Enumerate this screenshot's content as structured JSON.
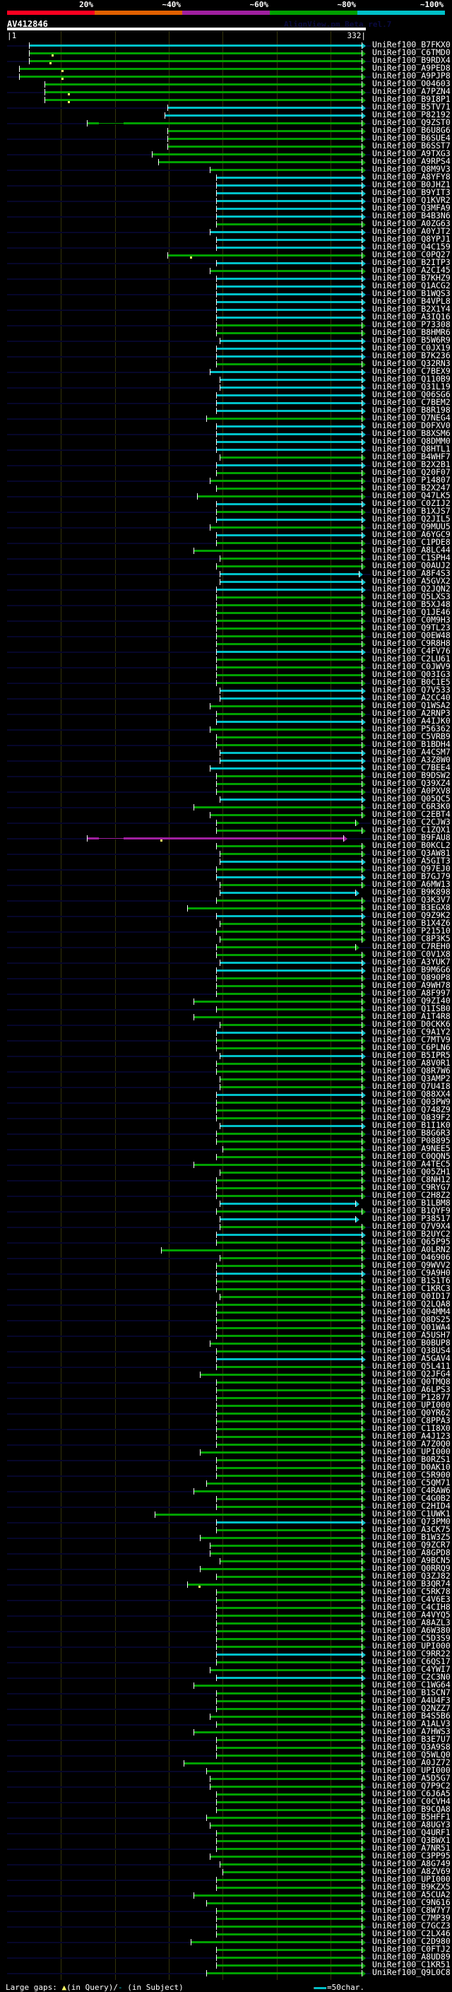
{
  "colors": {
    "red": "#ff0020",
    "orange": "#e06000",
    "purple": "#a020a0",
    "green": "#00a000",
    "cyan": "#00c0c8",
    "magenta": "#a020a0",
    "row_stripe": "#06062a",
    "grid": "#33330a"
  },
  "identity_legend": [
    {
      "label": "20%",
      "color": "#ff0020"
    },
    {
      "label": "~40%",
      "color": "#e06000"
    },
    {
      "label": "~60%",
      "color": "#a020a0"
    },
    {
      "label": "~80%",
      "color": "#00a000"
    },
    {
      "label": "~100%",
      "color": "#00c0c8"
    }
  ],
  "query": {
    "name": "AV412846",
    "start_label": "|1",
    "end_label": "332|",
    "length": 332
  },
  "credit": "AlignView.pm Beta rel.7",
  "footer": {
    "prefix": "Large gaps: ",
    "query_gap_icon": "▲",
    "query_text": "(in Query)/",
    "subject_gap_icon": "-",
    "subject_text": " (in Subject)",
    "scale_text": "=50char."
  },
  "bin_colors": {
    "c": "#00c0c8",
    "g": "#00a000",
    "m": "#a020a0"
  },
  "hits": [
    [
      "UniRef100_B7FKX0",
      21,
      330,
      "c"
    ],
    [
      "UniRef100_C6TMD0",
      21,
      330,
      "g",
      {
        "q": [
          43
        ]
      }
    ],
    [
      "UniRef100_B9RDX4",
      21,
      330,
      "g",
      {
        "q": [
          41
        ]
      }
    ],
    [
      "UniRef100_A9PED8",
      12,
      330,
      "g",
      {
        "q": [
          52
        ]
      }
    ],
    [
      "UniRef100_A9PJP8",
      12,
      330,
      "g",
      {
        "q": [
          52
        ]
      }
    ],
    [
      "UniRef100_O04603",
      36,
      330,
      "g"
    ],
    [
      "UniRef100_A7PZN4",
      36,
      330,
      "g",
      {
        "q": [
          58
        ]
      }
    ],
    [
      "UniRef100_B9I8P1",
      36,
      330,
      "g",
      {
        "q": [
          58
        ]
      }
    ],
    [
      "UniRef100_B5TV71",
      150,
      330,
      "c"
    ],
    [
      "UniRef100_P82192",
      147,
      330,
      "c"
    ],
    [
      "UniRef100_Q9ZST0",
      75,
      330,
      "g",
      {
        "t": [
          [
            86,
            109
          ]
        ]
      }
    ],
    [
      "UniRef100_B6U8G6",
      150,
      330,
      "g"
    ],
    [
      "UniRef100_B6SUE4",
      150,
      330,
      "g"
    ],
    [
      "UniRef100_B6SST7",
      150,
      330,
      "g"
    ],
    [
      "UniRef100_A9TXG3",
      135,
      330,
      "g"
    ],
    [
      "UniRef100_A9RPS4",
      141,
      330,
      "g"
    ],
    [
      "UniRef100_Q8M9V3",
      189,
      330,
      "g"
    ],
    [
      "UniRef100_A8YFY8",
      195,
      330,
      "c"
    ],
    [
      "UniRef100_B0JHZ1",
      195,
      330,
      "c"
    ],
    [
      "UniRef100_B9YIT3",
      195,
      330,
      "c"
    ],
    [
      "UniRef100_Q1KVR2",
      195,
      330,
      "c"
    ],
    [
      "UniRef100_Q3MFA9",
      195,
      330,
      "c"
    ],
    [
      "UniRef100_B4B3N6",
      195,
      330,
      "c"
    ],
    [
      "UniRef100_A0ZG63",
      195,
      330,
      "g"
    ],
    [
      "UniRef100_A0YJT2",
      189,
      330,
      "c"
    ],
    [
      "UniRef100_Q8YPJ1",
      195,
      330,
      "c"
    ],
    [
      "UniRef100_Q4C159",
      195,
      330,
      "c"
    ],
    [
      "UniRef100_C0PQ27",
      150,
      330,
      "g",
      {
        "q": [
          171
        ]
      }
    ],
    [
      "UniRef100_B2ITP3",
      195,
      330,
      "c"
    ],
    [
      "UniRef100_A2CI45",
      189,
      330,
      "g"
    ],
    [
      "UniRef100_B7KHZ9",
      195,
      330,
      "c"
    ],
    [
      "UniRef100_Q1ACG2",
      195,
      330,
      "c"
    ],
    [
      "UniRef100_B1WQS3",
      195,
      330,
      "c"
    ],
    [
      "UniRef100_B4VPL8",
      195,
      330,
      "c"
    ],
    [
      "UniRef100_B2X1Y4",
      195,
      330,
      "c"
    ],
    [
      "UniRef100_A3IQ16",
      195,
      330,
      "c"
    ],
    [
      "UniRef100_P73308",
      195,
      330,
      "g"
    ],
    [
      "UniRef100_B8HMR6",
      195,
      330,
      "g"
    ],
    [
      "UniRef100_B5W6R9",
      198,
      330,
      "c"
    ],
    [
      "UniRef100_C0JX19",
      195,
      330,
      "c"
    ],
    [
      "UniRef100_B7K236",
      195,
      330,
      "c"
    ],
    [
      "UniRef100_Q32RN3",
      195,
      330,
      "g"
    ],
    [
      "UniRef100_C7BEX9",
      189,
      330,
      "c"
    ],
    [
      "UniRef100_Q110B9",
      198,
      330,
      "c"
    ],
    [
      "UniRef100_Q31L19",
      198,
      330,
      "c"
    ],
    [
      "UniRef100_Q06SG6",
      195,
      330,
      "c"
    ],
    [
      "UniRef100_C7BEM2",
      195,
      330,
      "c"
    ],
    [
      "UniRef100_B8R198",
      195,
      330,
      "c"
    ],
    [
      "UniRef100_Q7NEG4",
      186,
      330,
      "g"
    ],
    [
      "UniRef100_D0FXV0",
      195,
      330,
      "c"
    ],
    [
      "UniRef100_B8XSM6",
      195,
      330,
      "c"
    ],
    [
      "UniRef100_Q8DMM0",
      195,
      330,
      "c"
    ],
    [
      "UniRef100_Q8HTL1",
      195,
      330,
      "c"
    ],
    [
      "UniRef100_B4WHF7",
      198,
      330,
      "g"
    ],
    [
      "UniRef100_B2X2B1",
      195,
      330,
      "c"
    ],
    [
      "UniRef100_Q20F07",
      195,
      330,
      "g"
    ],
    [
      "UniRef100_P14807",
      189,
      330,
      "g"
    ],
    [
      "UniRef100_B2X247",
      195,
      330,
      "g"
    ],
    [
      "UniRef100_Q47LK5",
      177,
      330,
      "g"
    ],
    [
      "UniRef100_C0ZIJ2",
      195,
      330,
      "c"
    ],
    [
      "UniRef100_B1XJS7",
      195,
      330,
      "g"
    ],
    [
      "UniRef100_Q2JIL5",
      195,
      330,
      "c"
    ],
    [
      "UniRef100_Q9MUU5",
      189,
      330,
      "g"
    ],
    [
      "UniRef100_A6YGC9",
      195,
      330,
      "c"
    ],
    [
      "UniRef100_C1PDE8",
      195,
      330,
      "g"
    ],
    [
      "UniRef100_A8LC44",
      174,
      330,
      "g"
    ],
    [
      "UniRef100_C1SPH4",
      198,
      330,
      "g"
    ],
    [
      "UniRef100_Q0AUJ2",
      195,
      330,
      "g"
    ],
    [
      "UniRef100_A8F4S3",
      198,
      327,
      "c"
    ],
    [
      "UniRef100_A5GVX2",
      198,
      330,
      "c"
    ],
    [
      "UniRef100_Q2JQN2",
      195,
      330,
      "c"
    ],
    [
      "UniRef100_Q5LXS3",
      195,
      330,
      "g"
    ],
    [
      "UniRef100_B5XJ48",
      195,
      330,
      "g"
    ],
    [
      "UniRef100_Q1JE46",
      195,
      330,
      "g"
    ],
    [
      "UniRef100_C0M9H3",
      195,
      330,
      "g"
    ],
    [
      "UniRef100_Q9TL23",
      195,
      330,
      "g"
    ],
    [
      "UniRef100_Q0EW48",
      195,
      330,
      "g"
    ],
    [
      "UniRef100_C9R8H8",
      195,
      330,
      "g"
    ],
    [
      "UniRef100_C4FV76",
      195,
      330,
      "c"
    ],
    [
      "UniRef100_C2LU61",
      195,
      330,
      "g"
    ],
    [
      "UniRef100_C0JWV9",
      195,
      330,
      "g"
    ],
    [
      "UniRef100_Q03IG3",
      195,
      330,
      "g"
    ],
    [
      "UniRef100_B0C1E5",
      195,
      330,
      "g"
    ],
    [
      "UniRef100_Q7V533",
      198,
      330,
      "c"
    ],
    [
      "UniRef100_A2CC40",
      198,
      330,
      "c"
    ],
    [
      "UniRef100_Q1WSA2",
      189,
      330,
      "g"
    ],
    [
      "UniRef100_A2RNP3",
      195,
      330,
      "g"
    ],
    [
      "UniRef100_A4IJK0",
      195,
      330,
      "c"
    ],
    [
      "UniRef100_P56362",
      189,
      330,
      "g"
    ],
    [
      "UniRef100_C5VRB9",
      195,
      330,
      "g"
    ],
    [
      "UniRef100_B1BDH4",
      195,
      330,
      "g"
    ],
    [
      "UniRef100_A4CSM7",
      198,
      330,
      "c"
    ],
    [
      "UniRef100_A3Z8W0",
      198,
      330,
      "c"
    ],
    [
      "UniRef100_C7BEE4",
      189,
      330,
      "c"
    ],
    [
      "UniRef100_B9DSW2",
      195,
      330,
      "g"
    ],
    [
      "UniRef100_Q39XZ4",
      195,
      330,
      "g"
    ],
    [
      "UniRef100_A0PXV8",
      195,
      330,
      "g"
    ],
    [
      "UniRef100_Q05QC5",
      198,
      330,
      "c"
    ],
    [
      "UniRef100_C6R3K0",
      174,
      330,
      "g"
    ],
    [
      "UniRef100_C2EBT4",
      189,
      330,
      "g"
    ],
    [
      "UniRef100_C2CJW3",
      195,
      324,
      "g"
    ],
    [
      "UniRef100_C1ZQX1",
      195,
      330,
      "g"
    ],
    [
      "UniRef100_B9FAU8",
      75,
      313,
      "m",
      {
        "t": [
          [
            86,
            109
          ]
        ],
        "q": [
          144
        ]
      }
    ],
    [
      "UniRef100_B0KCL2",
      195,
      330,
      "g"
    ],
    [
      "UniRef100_Q3AW81",
      198,
      330,
      "g"
    ],
    [
      "UniRef100_A5GIT3",
      198,
      330,
      "c"
    ],
    [
      "UniRef100_Q97EJ0",
      195,
      330,
      "g"
    ],
    [
      "UniRef100_B7GJ79",
      195,
      330,
      "c"
    ],
    [
      "UniRef100_A6MW13",
      198,
      330,
      "g"
    ],
    [
      "UniRef100_B9K898",
      198,
      324,
      "c"
    ],
    [
      "UniRef100_Q3K3V7",
      195,
      330,
      "g"
    ],
    [
      "UniRef100_B3EGX8",
      168,
      330,
      "g"
    ],
    [
      "UniRef100_Q9Z9K2",
      195,
      330,
      "c"
    ],
    [
      "UniRef100_B1X4Z6",
      198,
      330,
      "g"
    ],
    [
      "UniRef100_P21510",
      195,
      330,
      "g"
    ],
    [
      "UniRef100_C8P3K5",
      198,
      330,
      "g"
    ],
    [
      "UniRef100_C7REH0",
      195,
      324,
      "g"
    ],
    [
      "UniRef100_C0V1X8",
      195,
      330,
      "g"
    ],
    [
      "UniRef100_A3YUK7",
      198,
      330,
      "c"
    ],
    [
      "UniRef100_B9M6G6",
      195,
      330,
      "c"
    ],
    [
      "UniRef100_Q890P8",
      195,
      330,
      "g"
    ],
    [
      "UniRef100_A9WH78",
      195,
      330,
      "g"
    ],
    [
      "UniRef100_A8F997",
      195,
      330,
      "g"
    ],
    [
      "UniRef100_Q9ZI40",
      174,
      330,
      "g"
    ],
    [
      "UniRef100_Q1ISB0",
      195,
      330,
      "g"
    ],
    [
      "UniRef100_A1T4R8",
      174,
      330,
      "g"
    ],
    [
      "UniRef100_D0CKK6",
      198,
      330,
      "g"
    ],
    [
      "UniRef100_C9A1Y2",
      195,
      330,
      "c"
    ],
    [
      "UniRef100_C7MTV9",
      195,
      330,
      "g"
    ],
    [
      "UniRef100_C6PLN6",
      195,
      330,
      "g"
    ],
    [
      "UniRef100_B5IPR5",
      198,
      330,
      "c"
    ],
    [
      "UniRef100_A8V0R1",
      195,
      330,
      "g"
    ],
    [
      "UniRef100_Q8R7W6",
      195,
      330,
      "g"
    ],
    [
      "UniRef100_Q3AMP2",
      198,
      330,
      "g"
    ],
    [
      "UniRef100_Q7U4I8",
      198,
      330,
      "g"
    ],
    [
      "UniRef100_Q88XX4",
      195,
      330,
      "c"
    ],
    [
      "UniRef100_Q03PW9",
      195,
      330,
      "g"
    ],
    [
      "UniRef100_Q748Z9",
      195,
      330,
      "g"
    ],
    [
      "UniRef100_Q839F2",
      195,
      330,
      "g"
    ],
    [
      "UniRef100_B1I1K0",
      198,
      330,
      "c"
    ],
    [
      "UniRef100_B8G6R3",
      195,
      330,
      "g"
    ],
    [
      "UniRef100_P08895",
      195,
      330,
      "g"
    ],
    [
      "UniRef100_A9NEE5",
      201,
      330,
      "g"
    ],
    [
      "UniRef100_C0QQN5",
      195,
      330,
      "g"
    ],
    [
      "UniRef100_A4TEC5",
      174,
      330,
      "g"
    ],
    [
      "UniRef100_Q05ZH1",
      198,
      330,
      "g"
    ],
    [
      "UniRef100_C8NH12",
      195,
      330,
      "g"
    ],
    [
      "UniRef100_C9RYG7",
      195,
      330,
      "g"
    ],
    [
      "UniRef100_C2H8Z2",
      195,
      330,
      "g"
    ],
    [
      "UniRef100_B1LBM8",
      198,
      324,
      "c"
    ],
    [
      "UniRef100_B1QYF9",
      195,
      330,
      "g"
    ],
    [
      "UniRef100_P38517",
      198,
      324,
      "c"
    ],
    [
      "UniRef100_Q7V9X4",
      198,
      330,
      "g"
    ],
    [
      "UniRef100_B2UYC2",
      195,
      330,
      "c"
    ],
    [
      "UniRef100_Q65P95",
      195,
      330,
      "g"
    ],
    [
      "UniRef100_A0LRN2",
      144,
      330,
      "g"
    ],
    [
      "UniRef100_O46906",
      198,
      330,
      "g"
    ],
    [
      "UniRef100_Q9WVV2",
      195,
      330,
      "g"
    ],
    [
      "UniRef100_C9A9H0",
      195,
      330,
      "c"
    ],
    [
      "UniRef100_B1S1T6",
      195,
      330,
      "g"
    ],
    [
      "UniRef100_C1KRC3",
      195,
      330,
      "g"
    ],
    [
      "UniRef100_Q0ID17",
      198,
      330,
      "g"
    ],
    [
      "UniRef100_Q2LQA8",
      195,
      330,
      "g"
    ],
    [
      "UniRef100_Q04MM4",
      195,
      330,
      "g"
    ],
    [
      "UniRef100_Q8DS25",
      195,
      330,
      "g"
    ],
    [
      "UniRef100_Q01WA4",
      195,
      330,
      "g"
    ],
    [
      "UniRef100_A5USH7",
      195,
      330,
      "g"
    ],
    [
      "UniRef100_B0BUP8",
      189,
      330,
      "g"
    ],
    [
      "UniRef100_Q38US4",
      195,
      330,
      "g"
    ],
    [
      "UniRef100_A5GAV4",
      195,
      330,
      "c"
    ],
    [
      "UniRef100_Q5L411",
      195,
      330,
      "g"
    ],
    [
      "UniRef100_Q2JFG4",
      180,
      330,
      "g"
    ],
    [
      "UniRef100_Q0TMQ8",
      195,
      330,
      "g"
    ],
    [
      "UniRef100_A6LPS3",
      195,
      330,
      "g"
    ],
    [
      "UniRef100_P12877",
      195,
      330,
      "g"
    ],
    [
      "UniRef100_UPI000..",
      195,
      330,
      "g"
    ],
    [
      "UniRef100_Q0YR62",
      195,
      330,
      "g"
    ],
    [
      "UniRef100_C8PPA3",
      195,
      330,
      "g"
    ],
    [
      "UniRef100_C1I8X0",
      195,
      330,
      "g"
    ],
    [
      "UniRef100_A4J123",
      195,
      330,
      "g"
    ],
    [
      "UniRef100_A7Z0Q0",
      195,
      330,
      "g"
    ],
    [
      "UniRef100_UPI000..",
      180,
      330,
      "g"
    ],
    [
      "UniRef100_B0RZS1",
      195,
      330,
      "g"
    ],
    [
      "UniRef100_D0AK10",
      195,
      330,
      "g"
    ],
    [
      "UniRef100_C5R900",
      195,
      330,
      "g"
    ],
    [
      "UniRef100_C5QM71",
      186,
      330,
      "g"
    ],
    [
      "UniRef100_C4RAW6",
      174,
      330,
      "g"
    ],
    [
      "UniRef100_C4G0B2",
      195,
      330,
      "g"
    ],
    [
      "UniRef100_C2HID4",
      195,
      330,
      "g"
    ],
    [
      "UniRef100_C1UWK1",
      138,
      330,
      "g"
    ],
    [
      "UniRef100_Q73PM0",
      195,
      330,
      "c"
    ],
    [
      "UniRef100_A3CK75",
      195,
      330,
      "g"
    ],
    [
      "UniRef100_B1W3Z5",
      180,
      330,
      "g"
    ],
    [
      "UniRef100_Q9ZCR7",
      189,
      330,
      "g"
    ],
    [
      "UniRef100_A8GPD8",
      189,
      330,
      "g"
    ],
    [
      "UniRef100_A9BCN5",
      198,
      330,
      "g"
    ],
    [
      "UniRef100_Q0RRQ9",
      180,
      330,
      "g"
    ],
    [
      "UniRef100_Q3ZJ82",
      195,
      330,
      "g"
    ],
    [
      "UniRef100_B3QR74",
      168,
      330,
      "g",
      {
        "q": [
          179
        ]
      }
    ],
    [
      "UniRef100_C5RK78",
      195,
      330,
      "g"
    ],
    [
      "UniRef100_C4V6E3",
      195,
      330,
      "g"
    ],
    [
      "UniRef100_C4CIH8",
      195,
      330,
      "g"
    ],
    [
      "UniRef100_A4VYQ5",
      195,
      330,
      "g"
    ],
    [
      "UniRef100_A8AZL3",
      195,
      330,
      "g"
    ],
    [
      "UniRef100_A6W380",
      195,
      330,
      "g"
    ],
    [
      "UniRef100_C5D3S9",
      195,
      330,
      "g"
    ],
    [
      "UniRef100_UPI000..",
      195,
      330,
      "g"
    ],
    [
      "UniRef100_C9RR22",
      195,
      330,
      "c"
    ],
    [
      "UniRef100_C6QS17",
      195,
      330,
      "g"
    ],
    [
      "UniRef100_C4YWI7",
      189,
      330,
      "g"
    ],
    [
      "UniRef100_C2C3N0",
      195,
      330,
      "c"
    ],
    [
      "UniRef100_C1WG64",
      174,
      330,
      "g"
    ],
    [
      "UniRef100_B1SCN7",
      195,
      330,
      "g"
    ],
    [
      "UniRef100_A4U4F3",
      195,
      330,
      "g"
    ],
    [
      "UniRef100_Q2NZZ7",
      195,
      330,
      "g"
    ],
    [
      "UniRef100_B4S5B6",
      189,
      330,
      "g"
    ],
    [
      "UniRef100_A1ALV3",
      195,
      330,
      "g"
    ],
    [
      "UniRef100_A7HWS3",
      174,
      330,
      "g"
    ],
    [
      "UniRef100_B3E7U7",
      195,
      330,
      "g"
    ],
    [
      "UniRef100_Q3A9S8",
      195,
      330,
      "g"
    ],
    [
      "UniRef100_Q5WLQ0",
      195,
      330,
      "g"
    ],
    [
      "UniRef100_A0JZ72",
      165,
      330,
      "g"
    ],
    [
      "UniRef100_UPI000..",
      186,
      330,
      "g"
    ],
    [
      "UniRef100_A5D5G7",
      189,
      330,
      "g"
    ],
    [
      "UniRef100_Q7P9C2",
      189,
      330,
      "g"
    ],
    [
      "UniRef100_C6J6A5",
      195,
      330,
      "g"
    ],
    [
      "UniRef100_C0CVH4",
      195,
      330,
      "g"
    ],
    [
      "UniRef100_B9CQA8",
      195,
      330,
      "g"
    ],
    [
      "UniRef100_B5HFF1",
      186,
      330,
      "g"
    ],
    [
      "UniRef100_A8UGY3",
      189,
      330,
      "g"
    ],
    [
      "UniRef100_Q4URF1",
      195,
      330,
      "g"
    ],
    [
      "UniRef100_Q3BWX1",
      195,
      330,
      "g"
    ],
    [
      "UniRef100_A7NR51",
      195,
      330,
      "g"
    ],
    [
      "UniRef100_C3PP95",
      189,
      330,
      "g"
    ],
    [
      "UniRef100_A8G749",
      198,
      330,
      "g"
    ],
    [
      "UniRef100_A8ZV69",
      201,
      330,
      "g"
    ],
    [
      "UniRef100_UPI000..",
      195,
      330,
      "g"
    ],
    [
      "UniRef100_B9KZX5",
      195,
      330,
      "g"
    ],
    [
      "UniRef100_A5CUA2",
      174,
      330,
      "g"
    ],
    [
      "UniRef100_C9N616",
      186,
      330,
      "g"
    ],
    [
      "UniRef100_C8W7Y7",
      195,
      330,
      "g"
    ],
    [
      "UniRef100_C7MP39",
      195,
      330,
      "g"
    ],
    [
      "UniRef100_C7GCZ3",
      195,
      330,
      "g"
    ],
    [
      "UniRef100_C2LX46",
      195,
      330,
      "g"
    ],
    [
      "UniRef100_C2D980",
      171,
      330,
      "g"
    ],
    [
      "UniRef100_C0FTJ2",
      195,
      330,
      "g"
    ],
    [
      "UniRef100_A8UD89",
      195,
      330,
      "g"
    ],
    [
      "UniRef100_C1KR51",
      195,
      330,
      "g"
    ],
    [
      "UniRef100_Q9L0C8",
      186,
      330,
      "g"
    ]
  ]
}
